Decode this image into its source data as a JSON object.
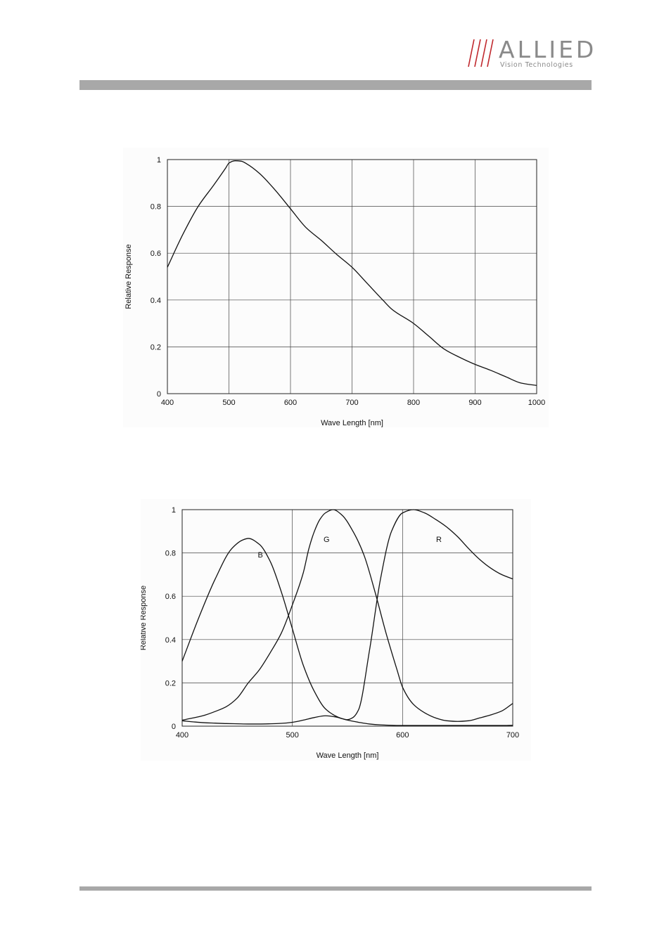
{
  "header": {
    "logo_name": "ALLIED",
    "logo_tagline": "Vision Technologies",
    "logo_slash_color": "#c0282d",
    "bar_color": "#a8a8a8"
  },
  "chart_data": [
    {
      "type": "line",
      "title": "",
      "xlabel": "Wave Length [nm]",
      "ylabel": "Relative Response",
      "xlim": [
        400,
        1000
      ],
      "ylim": [
        0,
        1
      ],
      "x_ticks": [
        "400",
        "500",
        "600",
        "700",
        "800",
        "900",
        "1000"
      ],
      "y_ticks": [
        "0",
        "0.2",
        "0.4",
        "0.6",
        "0.8",
        "1"
      ],
      "grid": true,
      "series": [
        {
          "x": [
            400,
            425,
            450,
            475,
            495,
            500,
            510,
            520,
            530,
            550,
            575,
            600,
            625,
            650,
            675,
            700,
            725,
            750,
            765,
            800,
            825,
            850,
            875,
            900,
            925,
            950,
            975,
            1000
          ],
          "y": [
            0.54,
            0.68,
            0.8,
            0.89,
            0.965,
            0.985,
            0.995,
            0.993,
            0.98,
            0.94,
            0.87,
            0.79,
            0.71,
            0.655,
            0.595,
            0.54,
            0.47,
            0.4,
            0.36,
            0.3,
            0.245,
            0.19,
            0.155,
            0.125,
            0.1,
            0.072,
            0.045,
            0.035
          ]
        }
      ]
    },
    {
      "type": "line",
      "title": "",
      "xlabel": "Wave Length [nm]",
      "ylabel": "Relative Response",
      "xlim": [
        400,
        700
      ],
      "ylim": [
        0,
        1
      ],
      "x_ticks": [
        "400",
        "500",
        "600",
        "700"
      ],
      "y_ticks": [
        "0",
        "0.2",
        "0.4",
        "0.6",
        "0.8",
        "1"
      ],
      "grid": true,
      "annotations": [
        {
          "text": "B",
          "x": 471,
          "y": 0.78
        },
        {
          "text": "G",
          "x": 531,
          "y": 0.85
        },
        {
          "text": "R",
          "x": 633,
          "y": 0.85
        }
      ],
      "series": [
        {
          "x": [
            400,
            410,
            420,
            430,
            440,
            450,
            460,
            470,
            480,
            490,
            500,
            510,
            520,
            530,
            540,
            545,
            550,
            560,
            570,
            580,
            590,
            600,
            610,
            620,
            630,
            640,
            650,
            660,
            670,
            680,
            690,
            700
          ],
          "y": [
            0.025,
            0.02,
            0.016,
            0.014,
            0.012,
            0.011,
            0.01,
            0.01,
            0.011,
            0.013,
            0.018,
            0.028,
            0.04,
            0.048,
            0.042,
            0.035,
            0.028,
            0.018,
            0.01,
            0.006,
            0.004,
            0.003,
            0.003,
            0.003,
            0.003,
            0.003,
            0.003,
            0.003,
            0.003,
            0.003,
            0.003,
            0.004
          ]
        },
        {
          "x": [
            400,
            415,
            430,
            445,
            455,
            460,
            470,
            480,
            490,
            500,
            510,
            520,
            530,
            540,
            545,
            550,
            555,
            560,
            570,
            580,
            590,
            600,
            610,
            620,
            630,
            640,
            650,
            660,
            670,
            680,
            690,
            700
          ],
          "y": [
            0.3,
            0.5,
            0.68,
            0.82,
            0.86,
            0.867,
            0.84,
            0.76,
            0.62,
            0.45,
            0.28,
            0.16,
            0.08,
            0.045,
            0.035,
            0.03,
            0.04,
            0.075,
            0.35,
            0.68,
            0.9,
            0.985,
            1.0,
            0.985,
            0.955,
            0.92,
            0.875,
            0.82,
            0.77,
            0.73,
            0.7,
            0.68
          ]
        },
        {
          "x": [
            400,
            410,
            420,
            430,
            440,
            450,
            460,
            470,
            480,
            490,
            500,
            510,
            515,
            520,
            525,
            530,
            537,
            545,
            555,
            565,
            575,
            585,
            595,
            600,
            610,
            620,
            630,
            640,
            650,
            660,
            670,
            680,
            690,
            700
          ],
          "y": [
            0.028,
            0.038,
            0.05,
            0.068,
            0.09,
            0.13,
            0.2,
            0.26,
            0.34,
            0.43,
            0.56,
            0.71,
            0.82,
            0.9,
            0.955,
            0.985,
            1.0,
            0.975,
            0.9,
            0.79,
            0.62,
            0.43,
            0.26,
            0.18,
            0.1,
            0.062,
            0.038,
            0.025,
            0.022,
            0.025,
            0.038,
            0.052,
            0.07,
            0.105
          ]
        }
      ]
    }
  ]
}
